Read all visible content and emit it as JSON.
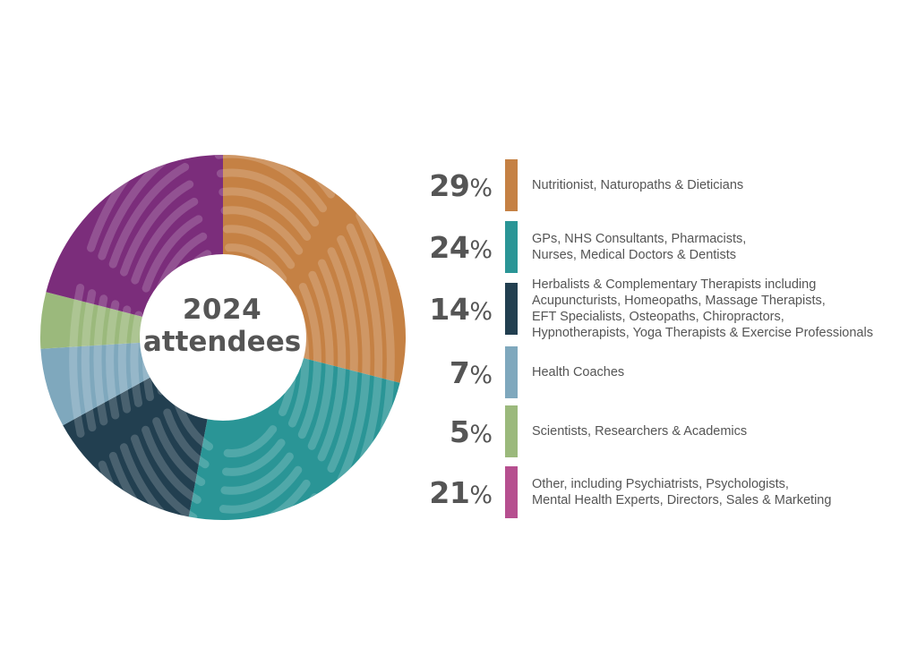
{
  "center": {
    "year": "2024",
    "word": "attendees"
  },
  "chart_data": {
    "type": "pie",
    "donut": true,
    "categories": [
      "Nutritionist, Naturopaths & Dieticians",
      "GPs, NHS Consultants, Pharmacists,\nNurses, Medical Doctors & Dentists",
      "Herbalists & Complementary Therapists including\nAcupuncturists, Homeopaths, Massage Therapists,\nEFT Specialists, Osteopaths, Chiropractors,\nHypnotherapists, Yoga Therapists & Exercise Professionals",
      "Health Coaches",
      "Scientists, Researchers & Academics",
      "Other, including Psychiatrists, Psychologists,\nMental Health Experts, Directors, Sales & Marketing"
    ],
    "values": [
      29,
      24,
      14,
      7,
      5,
      21
    ],
    "percent_labels": [
      "29",
      "24",
      "14",
      "7",
      "5",
      "21"
    ],
    "percent_sign": "%",
    "colors": [
      "#c58144",
      "#2a9596",
      "#223f50",
      "#7fa8bd",
      "#9bb97c",
      "#7b2d7b"
    ],
    "legend_swatch_colors": [
      "#c58144",
      "#2a9596",
      "#223f50",
      "#7fa8bd",
      "#9bb97c",
      "#b64f8f"
    ],
    "legend_placement": "right"
  }
}
